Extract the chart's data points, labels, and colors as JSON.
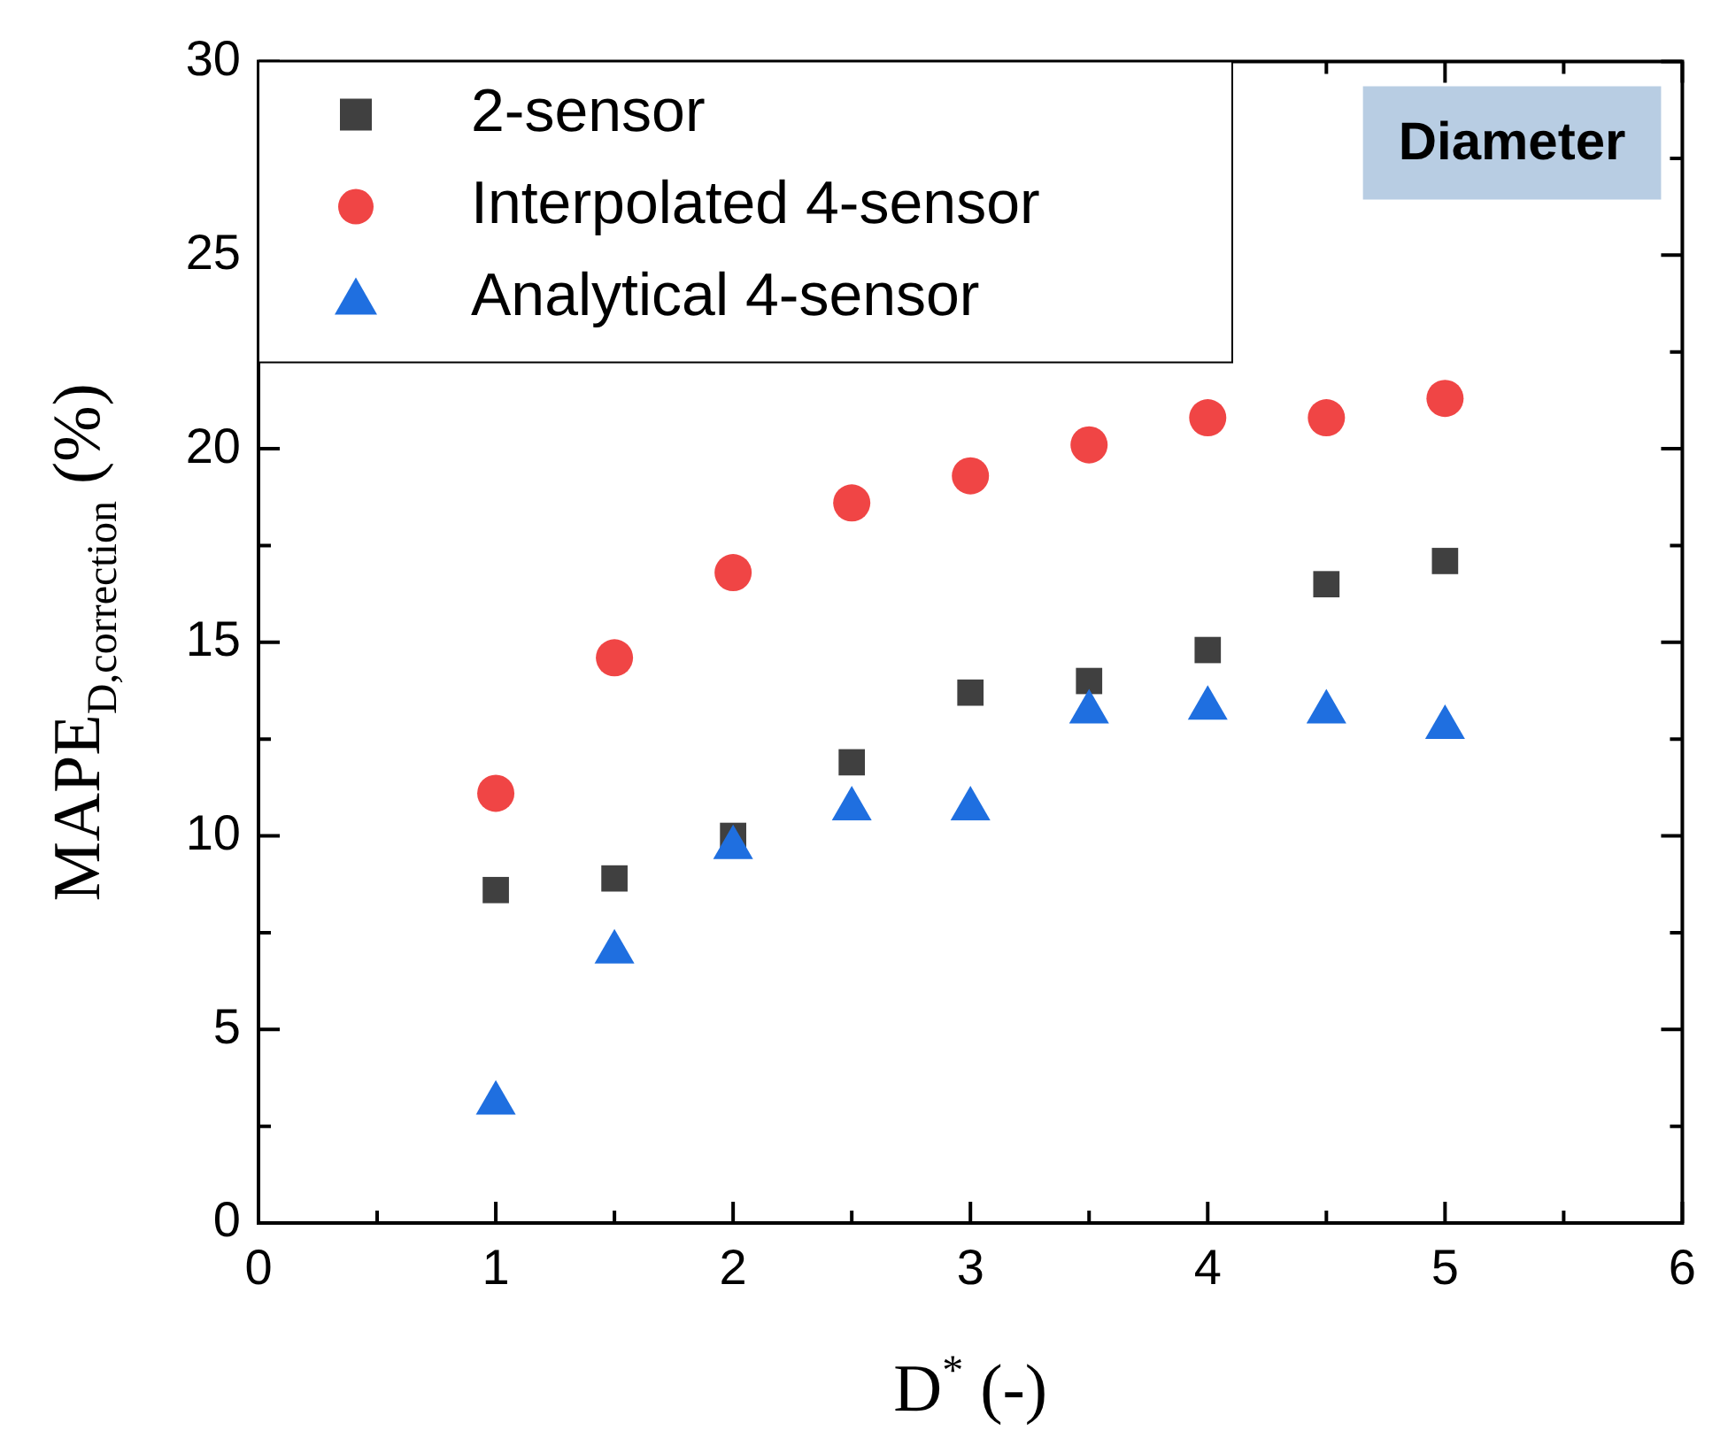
{
  "chart_data": {
    "type": "scatter",
    "xlabel": "D$^{*}$ (-)",
    "ylabel": "MAPE$_{D,correction}$ (%)",
    "x": [
      1,
      1.5,
      2,
      2.5,
      3,
      3.5,
      4,
      4.5,
      5
    ],
    "series": [
      {
        "name": "2-sensor",
        "color": "#404040",
        "marker": "square",
        "values": [
          8.6,
          8.9,
          10.0,
          11.9,
          13.7,
          14.0,
          14.8,
          16.5,
          17.1
        ]
      },
      {
        "name": "Interpolated 4-sensor",
        "color": "#f04545",
        "marker": "circle",
        "values": [
          11.1,
          14.6,
          16.8,
          18.6,
          19.3,
          20.1,
          20.8,
          20.8,
          21.3
        ]
      },
      {
        "name": "Analytical 4-sensor",
        "color": "#1f6fe0",
        "marker": "triangle",
        "values": [
          3.1,
          7.0,
          9.7,
          10.7,
          10.7,
          13.2,
          13.3,
          13.2,
          12.8
        ]
      }
    ],
    "annotations": [
      "Diameter"
    ],
    "xlim": [
      0,
      6
    ],
    "xticks": [
      0,
      1,
      2,
      3,
      4,
      5,
      6
    ],
    "ylim": [
      0,
      30
    ],
    "yticks": [
      0,
      5,
      10,
      15,
      20,
      25,
      30
    ],
    "grid": false,
    "legend": "top left"
  }
}
